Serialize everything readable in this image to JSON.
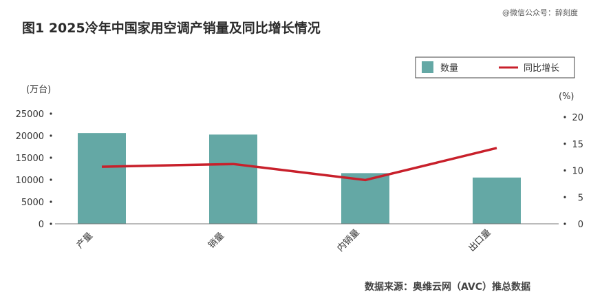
{
  "watermark": "@微信公众号：辞刻度",
  "chart_data": {
    "type": "bar+line",
    "title": "图1  2025冷年中国家用空调产销量及同比增长情况",
    "categories": [
      "产量",
      "销量",
      "内销量",
      "出口量"
    ],
    "series": [
      {
        "name": "数量",
        "type": "bar",
        "axis": "left",
        "color": "#64a8a5",
        "values": [
          20600,
          20250,
          11500,
          10500
        ]
      },
      {
        "name": "同比增长",
        "type": "line",
        "axis": "right",
        "color": "#c8202b",
        "values": [
          10.7,
          11.2,
          8.2,
          14.2
        ]
      }
    ],
    "y_left": {
      "unit": "(万台)",
      "ylim": [
        0,
        25000
      ],
      "ticks": [
        0,
        5000,
        10000,
        15000,
        20000,
        25000
      ]
    },
    "y_right": {
      "unit": "(%)",
      "ylim": [
        0,
        20
      ],
      "ticks": [
        0,
        5,
        10,
        15,
        20
      ]
    },
    "legend_position": "top-right",
    "source": "数据来源：奥维云网（AVC）推总数据"
  }
}
